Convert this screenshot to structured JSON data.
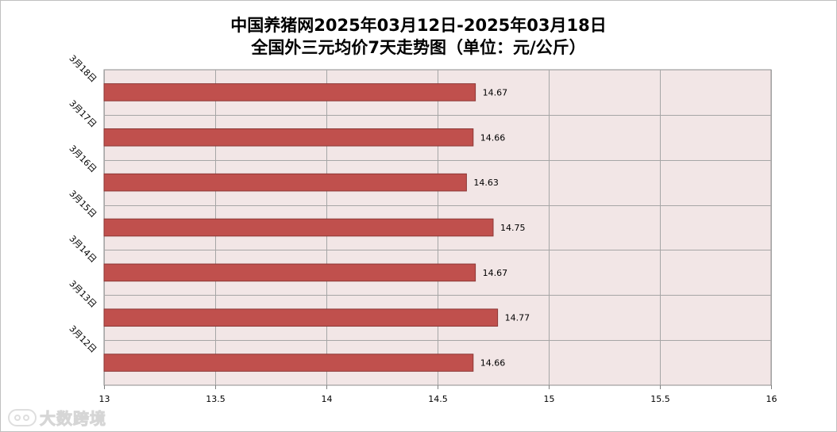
{
  "title_line1": "中国养猪网2025年03月12日-2025年03月18日",
  "title_line2": "全国外三元均价7天走势图（单位：元/公斤）",
  "watermark": "大数跨境",
  "colors": {
    "bar": "#c0504d",
    "bar_border": "#8c3836",
    "plot_bg": "#f2e6e6",
    "grid": "#a6a6a6"
  },
  "chart_data": {
    "type": "bar",
    "orientation": "horizontal",
    "title": "中国养猪网2025年03月12日-2025年03月18日 全国外三元均价7天走势图（单位：元/公斤）",
    "categories": [
      "3月18日",
      "3月17日",
      "3月16日",
      "3月15日",
      "3月14日",
      "3月13日",
      "3月12日"
    ],
    "values": [
      14.67,
      14.66,
      14.63,
      14.75,
      14.67,
      14.77,
      14.66
    ],
    "value_labels": [
      "14.67",
      "14.66",
      "14.63",
      "14.75",
      "14.67",
      "14.77",
      "14.66"
    ],
    "xlim": [
      13,
      16
    ],
    "xticks": [
      13,
      13.5,
      14,
      14.5,
      15,
      15.5,
      16
    ],
    "xtick_labels": [
      "13",
      "13.5",
      "14",
      "14.5",
      "15",
      "15.5",
      "16"
    ],
    "grid": true,
    "legend": false
  }
}
